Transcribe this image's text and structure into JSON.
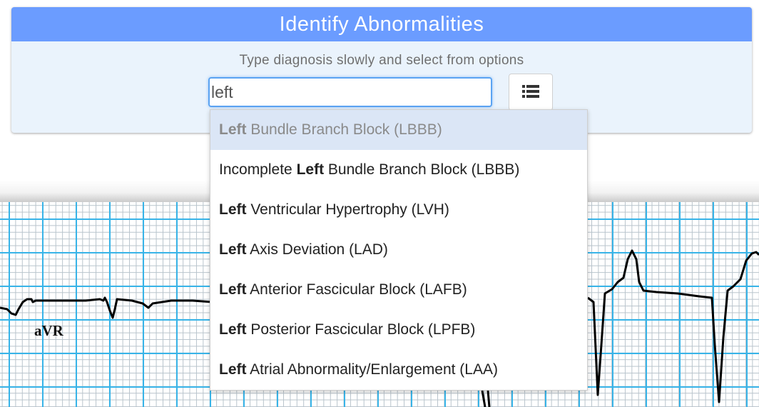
{
  "panel": {
    "title": "Identify Abnormalities",
    "instruction": "Type diagnosis slowly and select from options"
  },
  "search": {
    "value": "left",
    "list_icon": "list-icon"
  },
  "dropdown": {
    "options": [
      {
        "prefix": "",
        "match": "Left",
        "suffix": " Bundle Branch Block (LBBB)",
        "highlighted": true
      },
      {
        "prefix": "Incomplete ",
        "match": "Left",
        "suffix": " Bundle Branch Block (LBBB)",
        "highlighted": false
      },
      {
        "prefix": "",
        "match": "Left",
        "suffix": " Ventricular Hypertrophy (LVH)",
        "highlighted": false
      },
      {
        "prefix": "",
        "match": "Left",
        "suffix": " Axis Deviation (LAD)",
        "highlighted": false
      },
      {
        "prefix": "",
        "match": "Left",
        "suffix": " Anterior Fascicular Block (LAFB)",
        "highlighted": false
      },
      {
        "prefix": "",
        "match": "Left",
        "suffix": " Posterior Fascicular Block (LPFB)",
        "highlighted": false
      },
      {
        "prefix": "",
        "match": "Left",
        "suffix": " Atrial Abnormality/Enlargement (LAA)",
        "highlighted": false
      }
    ]
  },
  "ecg": {
    "lead_label": "aVR",
    "grid_major_color": "#38b4e8",
    "grid_minor_color": "#b9c4cc",
    "trace_color": "#000000"
  }
}
